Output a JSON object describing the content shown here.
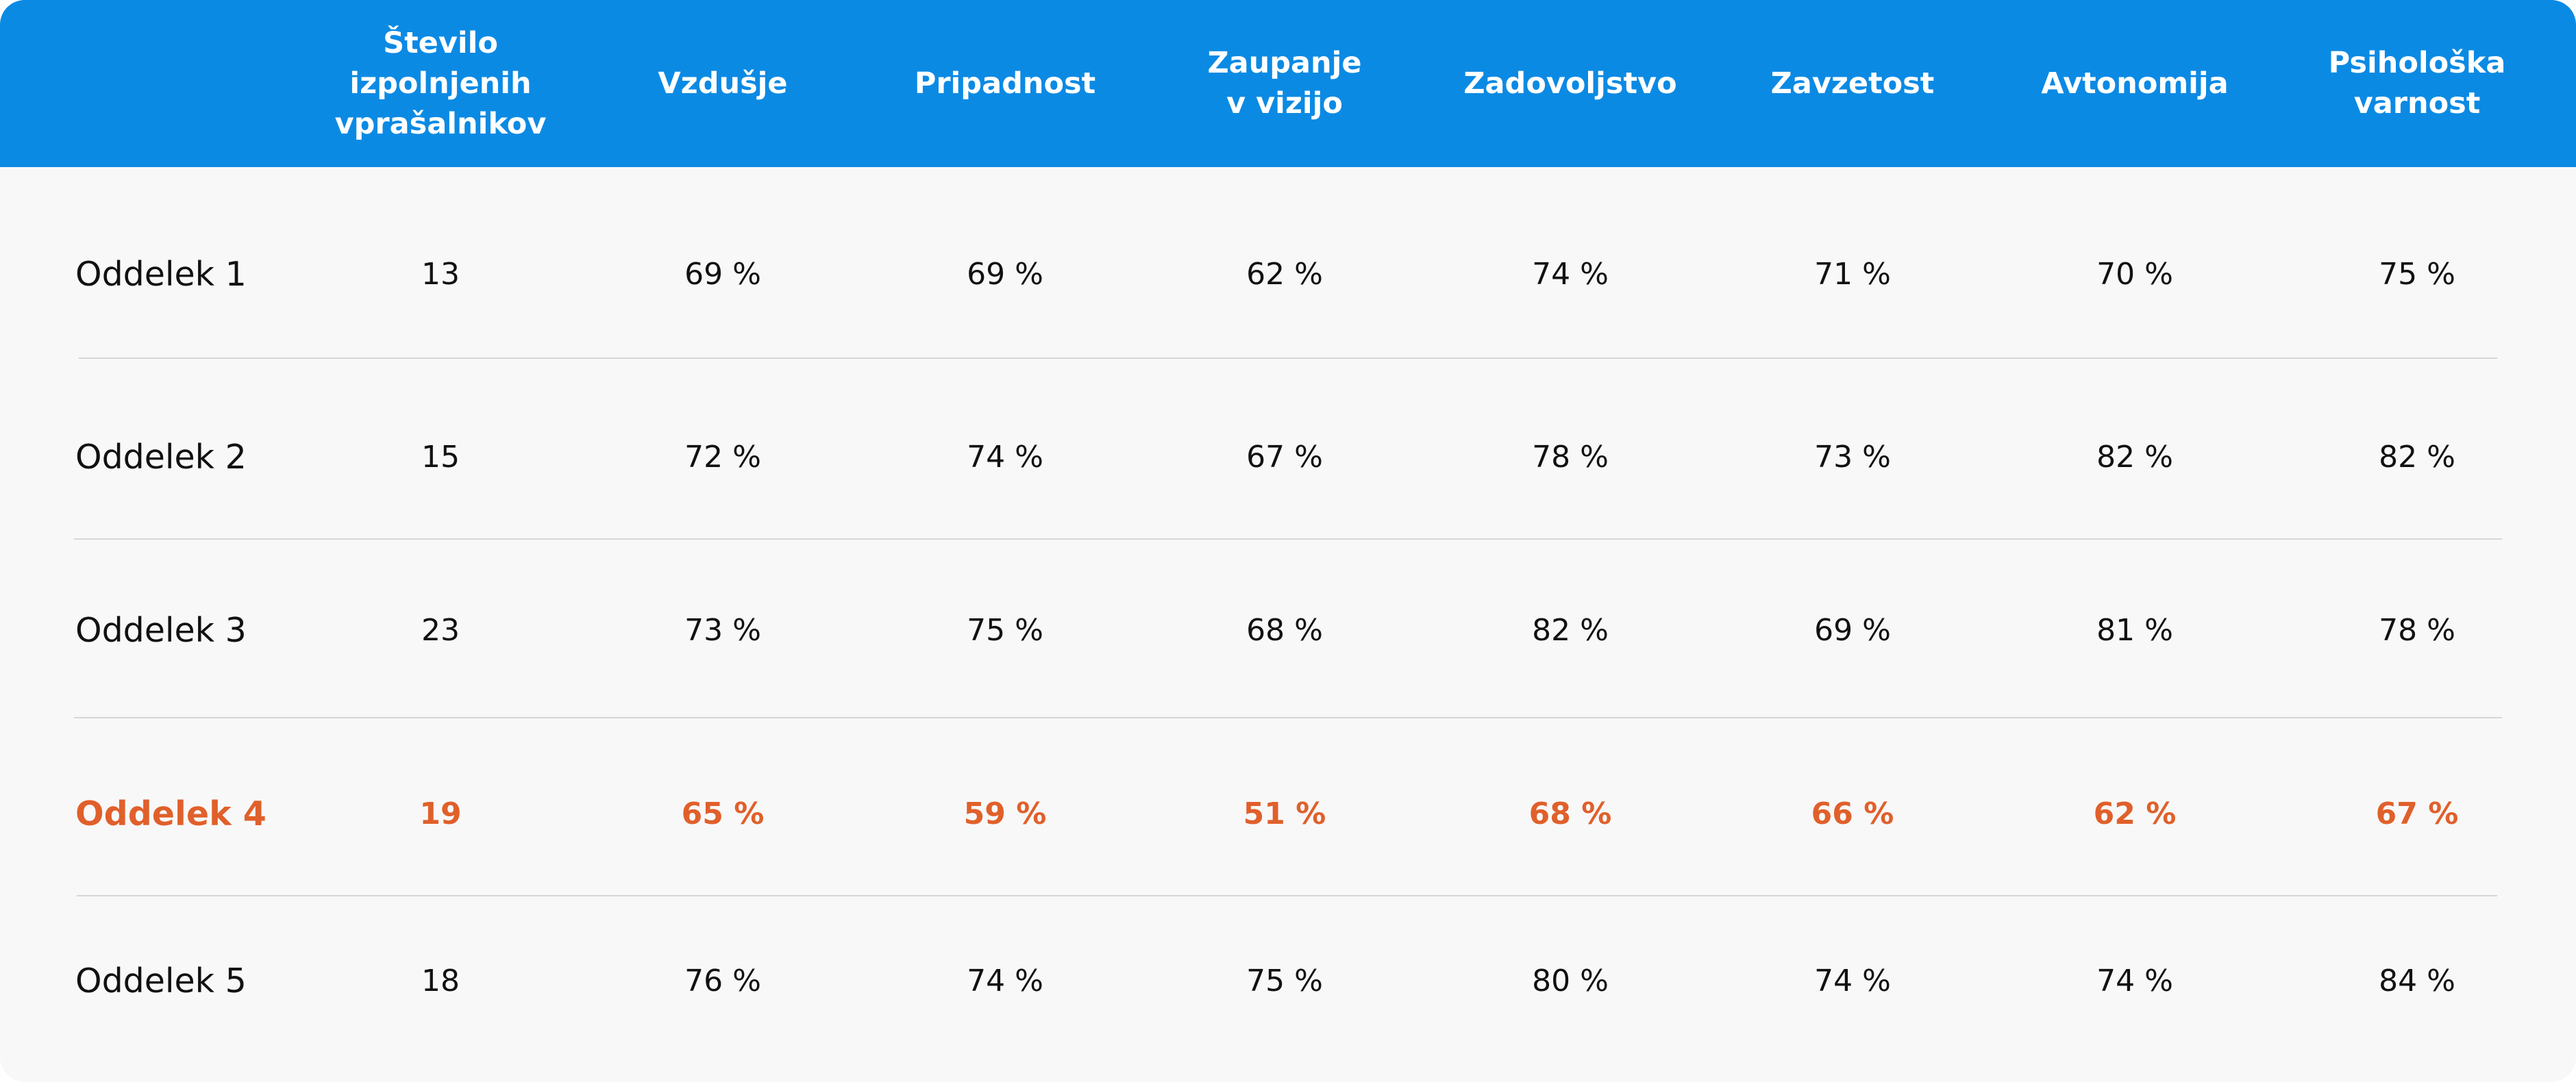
{
  "chart_data": {
    "type": "table",
    "columns": [
      "",
      "Število\nizpolnjenih\nvprašalnikov",
      "Vzdušje",
      "Pripadnost",
      "Zaupanje\nv vizijo",
      "Zadovoljstvo",
      "Zavzetost",
      "Avtonomija",
      "Psihološka\nvarnost"
    ],
    "rows": [
      {
        "label": "Oddelek 1",
        "highlight": false,
        "values": [
          "13",
          "69 %",
          "69 %",
          "62 %",
          "74 %",
          "71 %",
          "70 %",
          "75 %"
        ]
      },
      {
        "label": "Oddelek 2",
        "highlight": false,
        "values": [
          "15",
          "72 %",
          "74 %",
          "67 %",
          "78 %",
          "73 %",
          "82 %",
          "82 %"
        ]
      },
      {
        "label": "Oddelek 3",
        "highlight": false,
        "values": [
          "23",
          "73 %",
          "75 %",
          "68 %",
          "82 %",
          "69 %",
          "81 %",
          "78 %"
        ]
      },
      {
        "label": "Oddelek 4",
        "highlight": true,
        "values": [
          "19",
          "65 %",
          "59 %",
          "51 %",
          "68 %",
          "66 %",
          "62 %",
          "67 %"
        ]
      },
      {
        "label": "Oddelek 5",
        "highlight": false,
        "values": [
          "18",
          "76 %",
          "74 %",
          "75 %",
          "80 %",
          "74 %",
          "74 %",
          "84 %"
        ]
      }
    ]
  },
  "colors": {
    "header_bg": "#0b8ae4",
    "header_text": "#ffffff",
    "body_bg": "#f8f8f8",
    "text": "#111111",
    "highlight": "#e0602b",
    "divider": "#d6d6d6"
  }
}
